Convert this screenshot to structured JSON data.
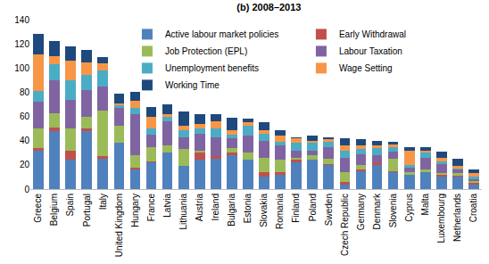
{
  "chart_data": {
    "type": "bar",
    "stacked": true,
    "title": "(b) 2008–2013",
    "categories": [
      "Greece",
      "Belgium",
      "Spain",
      "Portugal",
      "Italy",
      "United Kingdom",
      "Hungary",
      "France",
      "Latvia",
      "Lithuania",
      "Austria",
      "Ireland",
      "Bulgaria",
      "Estonia",
      "Slovakia",
      "Romania",
      "Finland",
      "Poland",
      "Sweden",
      "Czech Republic",
      "Germany",
      "Denmark",
      "Slovenia",
      "Cyprus",
      "Malta",
      "Luxembourg",
      "Netherlands",
      "Croatia"
    ],
    "series": [
      {
        "name": "Active labour market policies",
        "color": "#4f81bd",
        "values": [
          32,
          48,
          24,
          48,
          25,
          38,
          16,
          22,
          30,
          19,
          24,
          25,
          28,
          24,
          10,
          12,
          22,
          24,
          20,
          4,
          15,
          20,
          14,
          12,
          14,
          10,
          10,
          4
        ]
      },
      {
        "name": "Early Withdrawal",
        "color": "#c0504d",
        "values": [
          2,
          3,
          8,
          2,
          2,
          0,
          2,
          1,
          0,
          0,
          6,
          2,
          2,
          0,
          4,
          2,
          2,
          0,
          1,
          2,
          1,
          2,
          1,
          0,
          0,
          2,
          1,
          1
        ]
      },
      {
        "name": "Job Protection (EPL)",
        "color": "#9bbb59",
        "values": [
          16,
          12,
          18,
          10,
          38,
          14,
          10,
          12,
          6,
          14,
          2,
          0,
          4,
          6,
          12,
          10,
          2,
          4,
          4,
          8,
          4,
          0,
          10,
          2,
          2,
          1,
          2,
          2
        ]
      },
      {
        "name": "Labour Taxation",
        "color": "#8064a2",
        "values": [
          22,
          27,
          24,
          22,
          20,
          15,
          34,
          10,
          20,
          10,
          14,
          16,
          8,
          14,
          14,
          12,
          6,
          4,
          10,
          12,
          9,
          6,
          6,
          4,
          10,
          8,
          3,
          1
        ]
      },
      {
        "name": "Unemployment benefits",
        "color": "#4bacc6",
        "values": [
          9,
          13,
          16,
          12,
          13,
          2,
          5,
          5,
          4,
          6,
          4,
          7,
          3,
          8,
          6,
          3,
          6,
          6,
          4,
          6,
          4,
          6,
          4,
          2,
          4,
          2,
          1,
          2
        ]
      },
      {
        "name": "Wage Setting",
        "color": "#f79646",
        "values": [
          30,
          7,
          16,
          11,
          6,
          2,
          6,
          10,
          2,
          3,
          4,
          6,
          4,
          3,
          3,
          5,
          4,
          2,
          2,
          4,
          3,
          2,
          2,
          12,
          2,
          3,
          2,
          3
        ]
      },
      {
        "name": "Working Time",
        "color": "#1f497d",
        "values": [
          17,
          12,
          12,
          10,
          5,
          8,
          7,
          8,
          8,
          12,
          8,
          6,
          10,
          3,
          6,
          5,
          1,
          4,
          2,
          6,
          5,
          4,
          2,
          3,
          3,
          5,
          6,
          3
        ]
      }
    ],
    "ylim": [
      0,
      140
    ],
    "yticks": [
      0,
      20,
      40,
      60,
      80,
      100,
      120,
      140
    ],
    "grid": false,
    "legend": "top-right"
  }
}
